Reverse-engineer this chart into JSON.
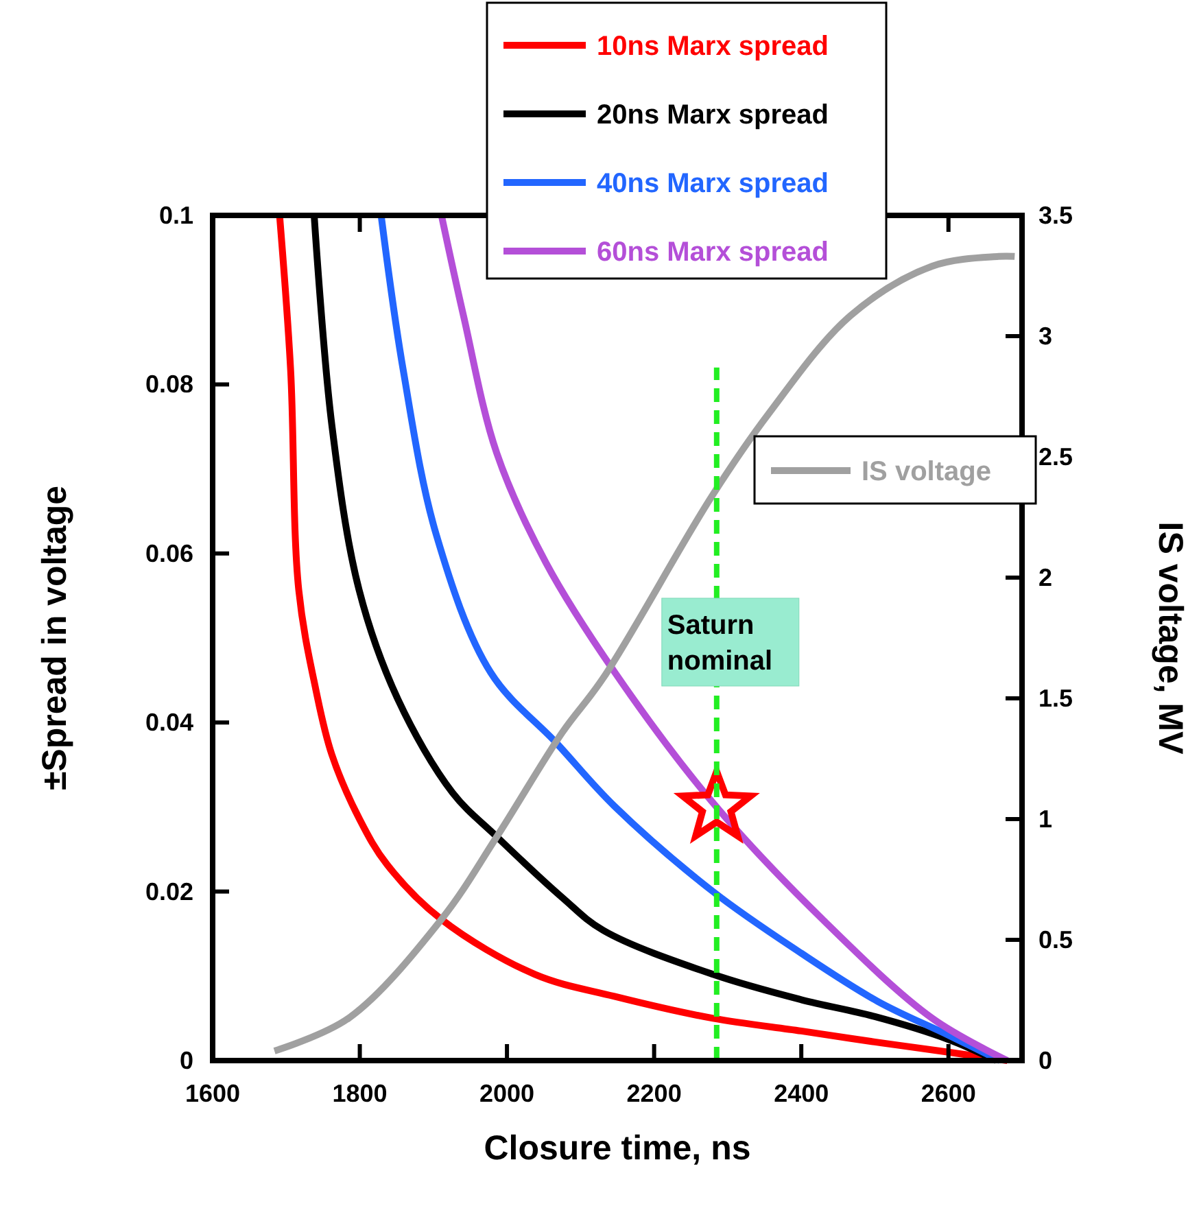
{
  "chart_data": {
    "type": "line",
    "xlabel": "Closure time, ns",
    "ylabel": "±Spread in voltage",
    "y2label": "IS voltage, MV",
    "xlim": [
      1600,
      2700
    ],
    "xticks": [
      1600,
      1800,
      2000,
      2200,
      2400,
      2600
    ],
    "ylim": [
      0,
      0.1
    ],
    "yticks": [
      0,
      0.02,
      0.04,
      0.06,
      0.08,
      0.1
    ],
    "y2lim": [
      0,
      3.5
    ],
    "y2ticks": [
      0,
      0.5,
      1,
      1.5,
      2,
      2.5,
      3,
      3.5
    ],
    "legend": "top",
    "grid": false,
    "marker": "none",
    "line_style": "solid",
    "series": [
      {
        "name": "10ns Marx spread",
        "color": "#ff0000",
        "x": [
          1691,
          1706,
          1717,
          1740,
          1762,
          1800,
          1837,
          1911,
          2038,
          2146,
          2280,
          2400,
          2500,
          2600,
          2680
        ],
        "values": [
          0.1,
          0.0817,
          0.0557,
          0.044,
          0.0362,
          0.0285,
          0.0232,
          0.0167,
          0.0102,
          0.0076,
          0.005,
          0.0035,
          0.0022,
          0.001,
          0
        ]
      },
      {
        "name": "20ns Marx spread",
        "color": "#000000",
        "x": [
          1738,
          1762,
          1799,
          1852,
          1926,
          1986,
          2075,
          2131,
          2280,
          2400,
          2500,
          2600,
          2665
        ],
        "values": [
          0.1,
          0.0752,
          0.0557,
          0.0427,
          0.0317,
          0.0265,
          0.0193,
          0.0154,
          0.0102,
          0.0072,
          0.0052,
          0.0025,
          0
        ]
      },
      {
        "name": "40ns Marx spread",
        "color": "#2266ff",
        "x": [
          1829,
          1859,
          1904,
          1978,
          2068,
          2146,
          2280,
          2400,
          2504,
          2600,
          2670
        ],
        "values": [
          0.1,
          0.0817,
          0.0622,
          0.0459,
          0.0375,
          0.0301,
          0.02,
          0.0127,
          0.007,
          0.003,
          0
        ]
      },
      {
        "name": "60ns Marx spread",
        "color": "#b44fd8",
        "x": [
          1911,
          1941,
          1986,
          2053,
          2146,
          2278,
          2429,
          2578,
          2680
        ],
        "values": [
          0.1,
          0.0881,
          0.0719,
          0.0589,
          0.046,
          0.0307,
          0.0167,
          0.005,
          0
        ]
      },
      {
        "name": "IS voltage",
        "color": "#a0a0a0",
        "axis": "y2",
        "x": [
          1684,
          1785,
          1911,
          1986,
          2075,
          2131,
          2278,
          2355,
          2467,
          2578,
          2668,
          2690
        ],
        "values": [
          0.04,
          0.176,
          0.585,
          0.926,
          1.358,
          1.585,
          2.335,
          2.676,
          3.085,
          3.29,
          3.33,
          3.33
        ]
      },
      {
        "type": "scatter",
        "marker": "star",
        "color": "#ff0000",
        "x": [
          2285
        ],
        "values": [
          0.03
        ]
      }
    ],
    "ref_lines": [
      {
        "axis": "x",
        "value": 2285,
        "label": "Saturn nominal",
        "color": "#22ee22",
        "line_style": "dashed"
      }
    ]
  }
}
